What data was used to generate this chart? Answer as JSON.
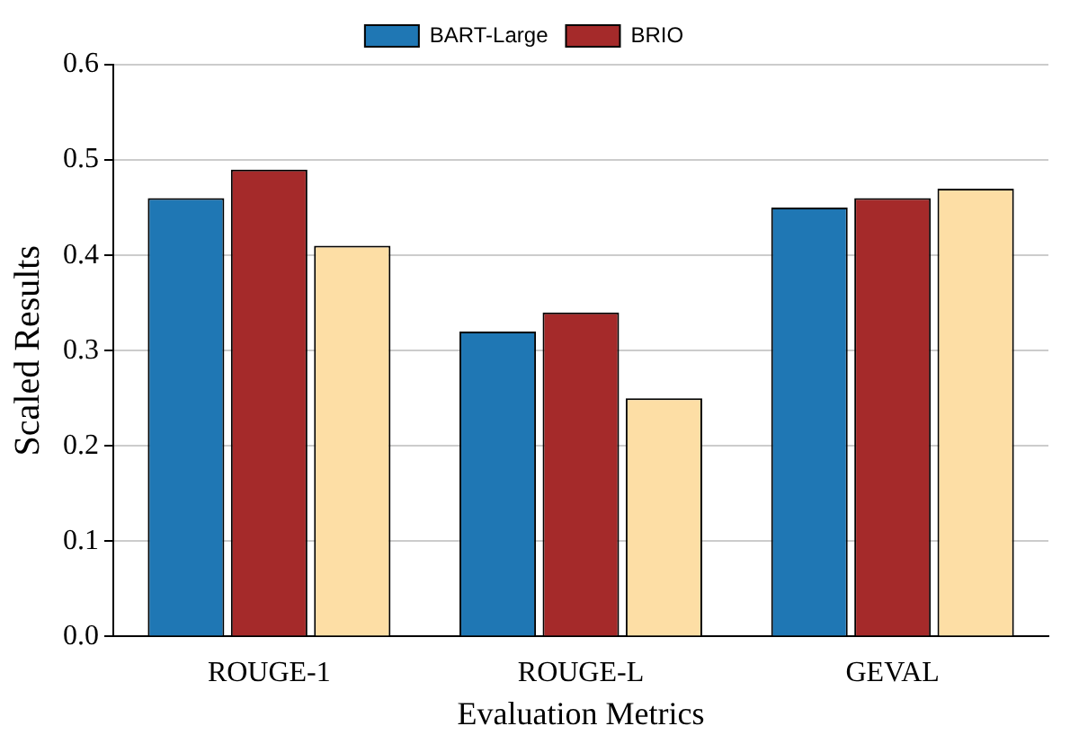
{
  "chart_data": {
    "type": "bar",
    "xlabel": "Evaluation Metrics",
    "ylabel": "Scaled Results",
    "categories": [
      "ROUGE-1",
      "ROUGE-L",
      "GEVAL"
    ],
    "series": [
      {
        "name": "BART-Large",
        "color": "#1f77b4",
        "values": [
          0.46,
          0.32,
          0.45
        ]
      },
      {
        "name": "BRIO",
        "color": "#a52a2a",
        "values": [
          0.49,
          0.34,
          0.46
        ]
      },
      {
        "color": "#fddea5",
        "values": [
          0.41,
          0.25,
          0.47
        ]
      }
    ],
    "ylim": [
      0,
      0.6
    ],
    "yticks": [
      {
        "value": 0,
        "label": "0.0"
      },
      {
        "value": 0.1,
        "label": "0.1"
      },
      {
        "value": 0.2,
        "label": "0.2"
      },
      {
        "value": 0.3,
        "label": "0.3"
      },
      {
        "value": 0.4,
        "label": "0.4"
      },
      {
        "value": 0.5,
        "label": "0.5"
      },
      {
        "value": 0.6,
        "label": "0.6"
      }
    ],
    "grid": "y",
    "legend": "top"
  }
}
